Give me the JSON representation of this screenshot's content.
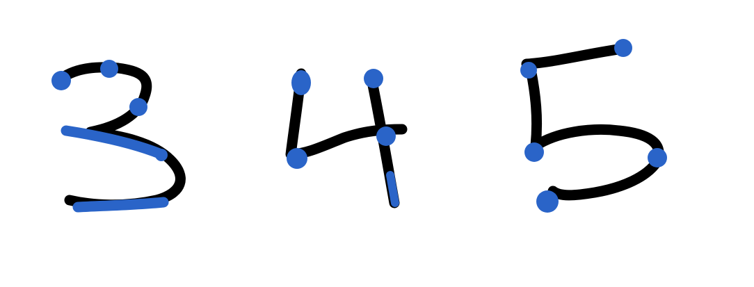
{
  "digits": [
    {
      "value": "3"
    },
    {
      "value": "4"
    },
    {
      "value": "5"
    }
  ],
  "colors": {
    "background": "#ffffff",
    "ink": "#000000",
    "highlight": "#2a64c8"
  }
}
